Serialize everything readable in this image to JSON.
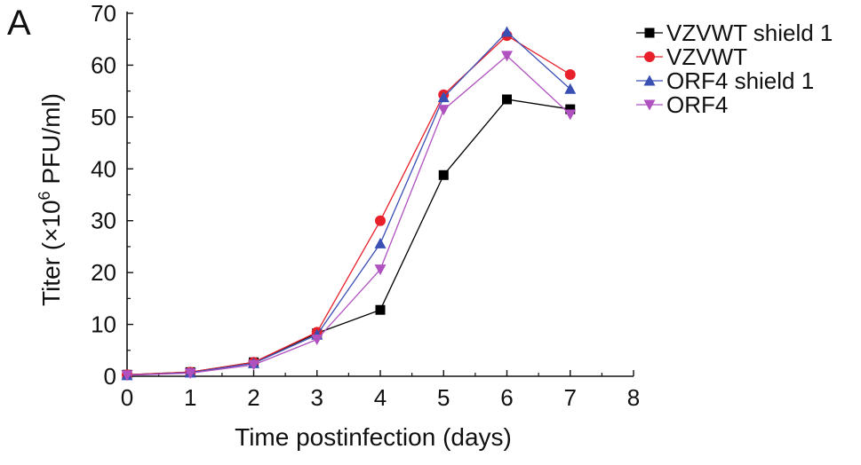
{
  "panel_label": "A",
  "chart_data": {
    "type": "line",
    "title": "",
    "xlabel": "Time postinfection (days)",
    "ylabel_prefix": "Titer (×10",
    "ylabel_exponent": "6",
    "ylabel_suffix": " PFU/ml)",
    "xlim": [
      0,
      8
    ],
    "ylim": [
      0,
      70
    ],
    "xticks": [
      0,
      1,
      2,
      3,
      4,
      5,
      6,
      7,
      8
    ],
    "yticks": [
      0,
      10,
      20,
      30,
      40,
      50,
      60,
      70
    ],
    "grid": false,
    "legend_position": "top-right",
    "x": [
      0,
      1,
      2,
      3,
      4,
      5,
      6,
      7
    ],
    "series": [
      {
        "name": "VZVWT shield 1",
        "color": "#000000",
        "marker": "square",
        "values": [
          0.3,
          0.8,
          2.7,
          8.3,
          12.8,
          38.8,
          53.4,
          51.5
        ]
      },
      {
        "name": "VZVWT",
        "color": "#e8202a",
        "marker": "circle",
        "values": [
          0.3,
          0.8,
          2.7,
          8.5,
          30.0,
          54.3,
          65.7,
          58.2
        ]
      },
      {
        "name": "ORF4 shield 1",
        "color": "#3a4fb4",
        "marker": "triangle-up",
        "values": [
          0.2,
          0.7,
          2.5,
          8.0,
          25.6,
          53.8,
          66.4,
          55.4
        ]
      },
      {
        "name": "ORF4",
        "color": "#b051c0",
        "marker": "triangle-down",
        "values": [
          0.2,
          0.6,
          2.2,
          7.1,
          20.6,
          51.4,
          61.8,
          50.5
        ]
      }
    ]
  }
}
